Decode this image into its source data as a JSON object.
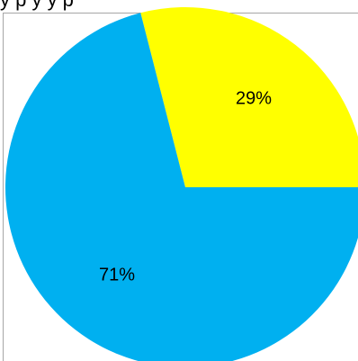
{
  "header": {
    "partial_text": "y   p   y   y   p"
  },
  "chart_data": {
    "type": "pie",
    "title": "",
    "slices": [
      {
        "value": 29,
        "label": "29%",
        "color": "#FFFF00"
      },
      {
        "value": 71,
        "label": "71%",
        "color": "#00B0F0"
      }
    ],
    "start_angle_deg": 0,
    "direction": "counterclockwise",
    "legend": "none"
  }
}
